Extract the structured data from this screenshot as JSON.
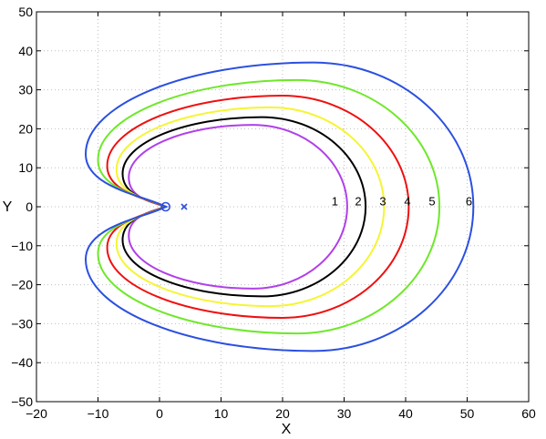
{
  "chart_data": {
    "type": "line",
    "title": "",
    "xlabel": "X",
    "ylabel": "Y",
    "xlim": [
      -20,
      60
    ],
    "ylim": [
      -50,
      50
    ],
    "xticks": [
      -20,
      -10,
      0,
      10,
      20,
      30,
      40,
      50,
      60
    ],
    "yticks": [
      -50,
      -40,
      -30,
      -20,
      -10,
      0,
      10,
      20,
      30,
      40,
      50
    ],
    "xtick_labels": [
      "−20",
      "−10",
      "0",
      "10",
      "20",
      "30",
      "40",
      "50",
      "60"
    ],
    "ytick_labels": [
      "−50",
      "−40",
      "−30",
      "−20",
      "−10",
      "0",
      "10",
      "20",
      "30",
      "40",
      "50"
    ],
    "grid": true,
    "series": [
      {
        "name": "1",
        "color": "#b040e8",
        "cusp_x": 1,
        "rightmost_x": 30.5,
        "top_y": 21,
        "leftmost_x": -5,
        "lobe_y": 7.5
      },
      {
        "name": "2",
        "color": "#000000",
        "cusp_x": 1,
        "rightmost_x": 33.5,
        "top_y": 23,
        "leftmost_x": -6,
        "lobe_y": 8.5
      },
      {
        "name": "3",
        "color": "#f5f532",
        "cusp_x": 1,
        "rightmost_x": 36.5,
        "top_y": 25.5,
        "leftmost_x": -7,
        "lobe_y": 9.5
      },
      {
        "name": "4",
        "color": "#ef1010",
        "cusp_x": 1,
        "rightmost_x": 40.5,
        "top_y": 28.5,
        "leftmost_x": -8.5,
        "lobe_y": 10.5
      },
      {
        "name": "5",
        "color": "#6ee82a",
        "cusp_x": 1,
        "rightmost_x": 45.5,
        "top_y": 32.5,
        "leftmost_x": -10,
        "lobe_y": 12
      },
      {
        "name": "6",
        "color": "#2b50e0",
        "cusp_x": 1,
        "rightmost_x": 51,
        "top_y": 37,
        "leftmost_x": -12,
        "lobe_y": 13.5
      }
    ],
    "curve_labels": [
      {
        "text": "1",
        "x": 28.5,
        "y": 1.5
      },
      {
        "text": "2",
        "x": 32.3,
        "y": 1.5
      },
      {
        "text": "3",
        "x": 36.3,
        "y": 1.5
      },
      {
        "text": "4",
        "x": 40.3,
        "y": 1.5
      },
      {
        "text": "5",
        "x": 44.3,
        "y": 1.5
      },
      {
        "text": "6",
        "x": 50.3,
        "y": 1.5
      }
    ],
    "markers": [
      {
        "kind": "sun-symbol",
        "x": 1,
        "y": 0,
        "color": "#2b50e0"
      },
      {
        "kind": "cross",
        "x": 4,
        "y": 0,
        "color": "#2b50e0"
      }
    ]
  }
}
